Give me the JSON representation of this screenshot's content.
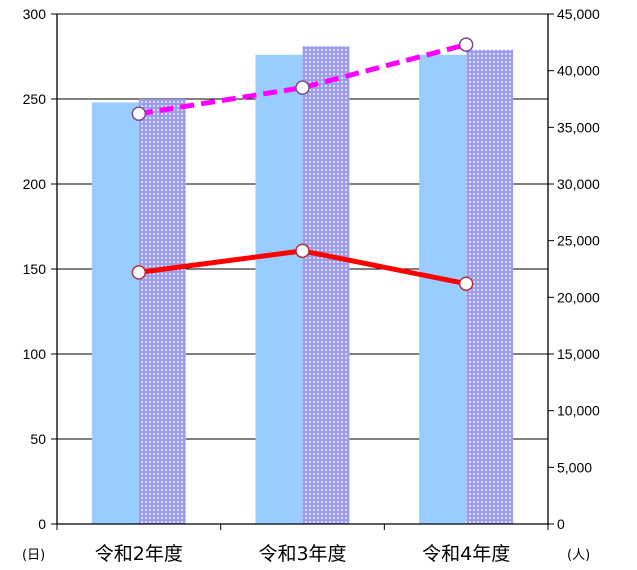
{
  "chart_data": {
    "type": "bar+line",
    "categories": [
      "令和2年度",
      "令和3年度",
      "令和4年度"
    ],
    "y_left": {
      "unit_label": "(日)",
      "ylim": [
        0,
        300
      ],
      "ticks": [
        "0",
        "50",
        "100",
        "150",
        "200",
        "250",
        "300"
      ]
    },
    "y_right": {
      "unit_label": "(人)",
      "ylim": [
        0,
        45000
      ],
      "ticks": [
        "0",
        "5,000",
        "10,000",
        "15,000",
        "20,000",
        "25,000",
        "30,000",
        "35,000",
        "40,000",
        "45,000"
      ]
    },
    "bar_series": [
      {
        "axis": "left",
        "color": "#99ccff",
        "pattern": "solid",
        "values": [
          248,
          276,
          276
        ]
      },
      {
        "axis": "left",
        "color": "#9999ee",
        "pattern": "dotted",
        "values": [
          250,
          281,
          279
        ]
      }
    ],
    "line_series": [
      {
        "axis": "right",
        "color": "#ff0000",
        "style": "solid",
        "values": [
          22200,
          24100,
          21200
        ]
      },
      {
        "axis": "right",
        "color": "#ff00ff",
        "style": "dashed",
        "values": [
          36200,
          38500,
          42300
        ]
      }
    ],
    "grid": true,
    "legend": "none"
  }
}
